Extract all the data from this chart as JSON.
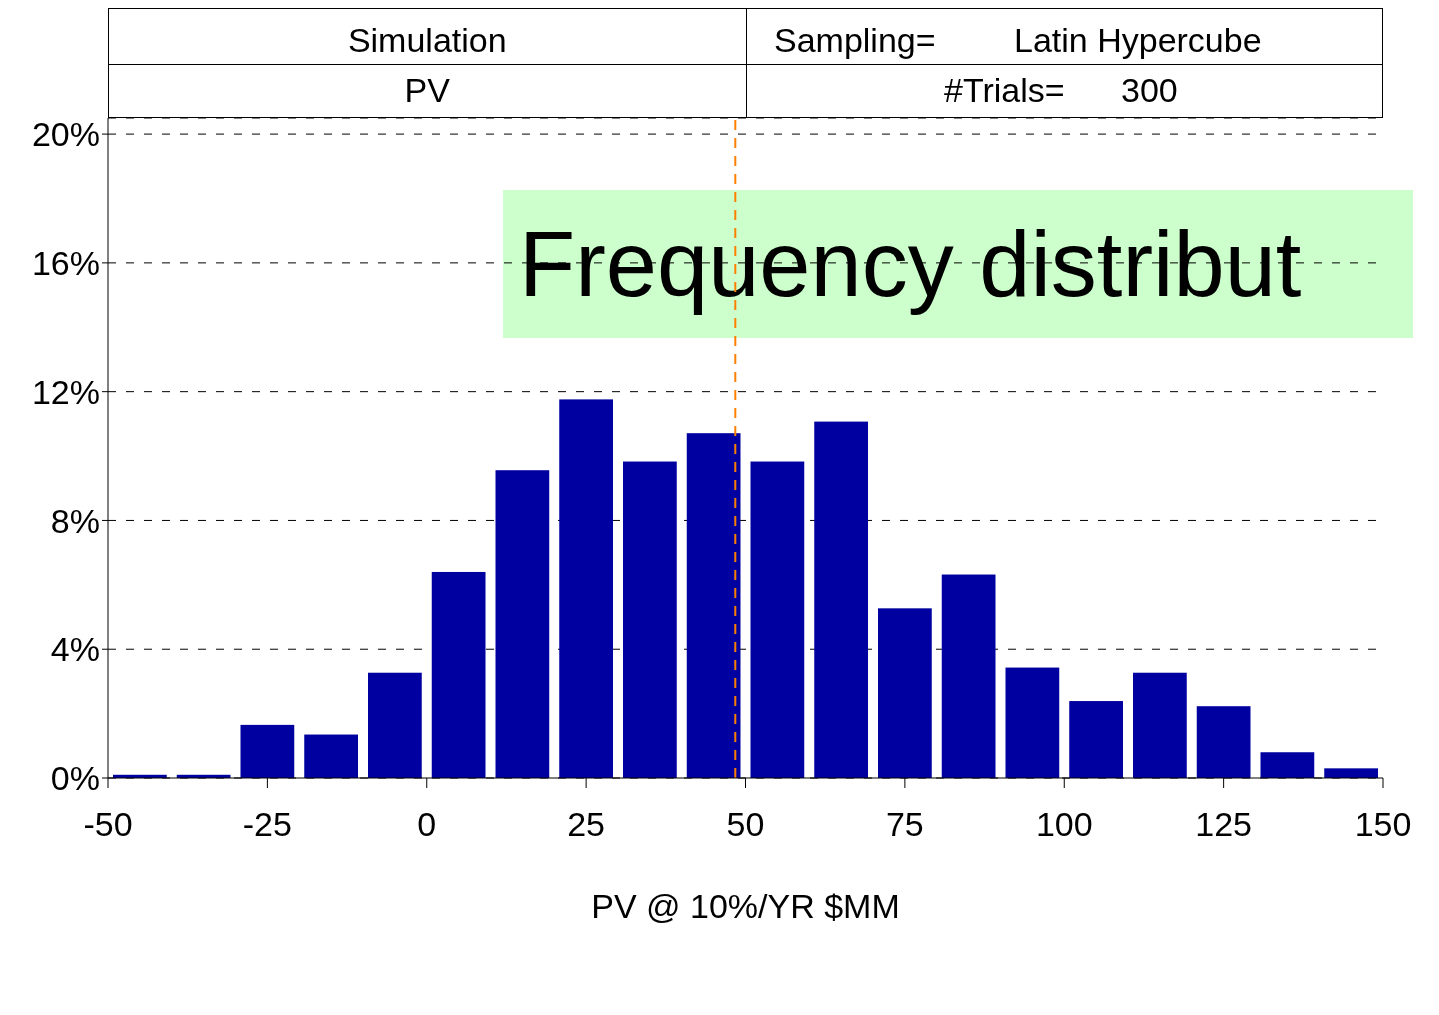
{
  "chart_data": {
    "type": "histogram",
    "title": "Frequency distribut",
    "xlabel": "PV @ 10%/YR  $MM",
    "annotations": [
      "Simulation",
      "Sampling=",
      "Latin Hypercube",
      "PV",
      "#Trials=",
      "300"
    ],
    "bins": [
      -50,
      -40,
      -30,
      -20,
      -10,
      0,
      10,
      20,
      30,
      40,
      50,
      60,
      70,
      80,
      90,
      100,
      110,
      120,
      130,
      140,
      150
    ],
    "values": [
      0.1,
      0.1,
      1.65,
      1.35,
      3.27,
      6.4,
      9.56,
      11.76,
      9.83,
      10.71,
      9.83,
      11.07,
      5.27,
      6.32,
      3.43,
      2.39,
      3.27,
      2.23,
      0.8,
      0.3
    ],
    "color": "#0000a0",
    "xlim": [
      -50,
      150
    ],
    "xticks": [
      -50,
      -25,
      0,
      25,
      50,
      75,
      100,
      125,
      150
    ],
    "ylim": [
      0,
      20.5
    ],
    "yticks": [
      {
        "value": 0,
        "label": "0%"
      },
      {
        "value": 4,
        "label": "4%"
      },
      {
        "value": 8,
        "label": "8%"
      },
      {
        "value": 12,
        "label": "12%"
      },
      {
        "value": 16,
        "label": "16%"
      },
      {
        "value": 20,
        "label": "20%"
      }
    ],
    "grid": "y",
    "ref_lines": [
      {
        "axis": "x",
        "value": 48.4,
        "color": "#ff8000",
        "line_style": "dashed"
      }
    ]
  }
}
